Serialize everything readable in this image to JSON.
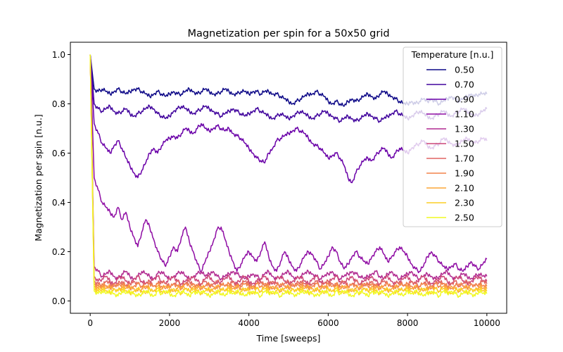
{
  "chart_data": {
    "type": "line",
    "title": "Magnetization per spin for a 50x50 grid",
    "xlabel": "Time [sweeps]",
    "ylabel": "Magnetization per spin [n.u.]",
    "xlim": [
      -500,
      10500
    ],
    "ylim": [
      -0.05,
      1.05
    ],
    "xticks": [
      0,
      2000,
      4000,
      6000,
      8000,
      10000
    ],
    "yticks": [
      0.0,
      0.2,
      0.4,
      0.6,
      0.8,
      1.0
    ],
    "ytick_labels": [
      "0.0",
      "0.2",
      "0.4",
      "0.6",
      "0.8",
      "1.0"
    ],
    "x_step": 100,
    "legend": {
      "title": "Temperature [n.u.]",
      "placement": "top-right",
      "alpha": 0.8
    },
    "grid": false,
    "series": [
      {
        "name": "0.50",
        "color": "#0d0887",
        "values": [
          1.0,
          0.86,
          0.85,
          0.86,
          0.85,
          0.84,
          0.85,
          0.86,
          0.85,
          0.84,
          0.85,
          0.86,
          0.86,
          0.85,
          0.84,
          0.83,
          0.84,
          0.85,
          0.84,
          0.83,
          0.84,
          0.85,
          0.84,
          0.84,
          0.85,
          0.86,
          0.85,
          0.84,
          0.85,
          0.86,
          0.85,
          0.84,
          0.84,
          0.85,
          0.86,
          0.85,
          0.84,
          0.84,
          0.85,
          0.85,
          0.84,
          0.85,
          0.85,
          0.84,
          0.85,
          0.85,
          0.84,
          0.84,
          0.83,
          0.82,
          0.81,
          0.8,
          0.81,
          0.82,
          0.83,
          0.84,
          0.84,
          0.85,
          0.84,
          0.83,
          0.81,
          0.8,
          0.81,
          0.8,
          0.79,
          0.81,
          0.82,
          0.81,
          0.82,
          0.83,
          0.84,
          0.83,
          0.82,
          0.84,
          0.85,
          0.84,
          0.83,
          0.82,
          0.81,
          0.8,
          0.8,
          0.81,
          0.8,
          0.81,
          0.82,
          0.81,
          0.82,
          0.81,
          0.8,
          0.81,
          0.82,
          0.83,
          0.82,
          0.81,
          0.82,
          0.83,
          0.84,
          0.83,
          0.84,
          0.84,
          0.84
        ]
      },
      {
        "name": "0.70",
        "color": "#41049d",
        "values": [
          1.0,
          0.8,
          0.78,
          0.77,
          0.78,
          0.79,
          0.77,
          0.76,
          0.77,
          0.78,
          0.76,
          0.75,
          0.76,
          0.77,
          0.78,
          0.79,
          0.78,
          0.76,
          0.75,
          0.74,
          0.75,
          0.77,
          0.78,
          0.79,
          0.78,
          0.77,
          0.76,
          0.77,
          0.78,
          0.79,
          0.78,
          0.77,
          0.76,
          0.75,
          0.76,
          0.77,
          0.78,
          0.77,
          0.76,
          0.75,
          0.76,
          0.77,
          0.78,
          0.77,
          0.76,
          0.75,
          0.74,
          0.75,
          0.76,
          0.75,
          0.74,
          0.75,
          0.76,
          0.77,
          0.76,
          0.75,
          0.74,
          0.75,
          0.76,
          0.77,
          0.76,
          0.75,
          0.74,
          0.73,
          0.74,
          0.75,
          0.74,
          0.73,
          0.74,
          0.75,
          0.76,
          0.75,
          0.74,
          0.73,
          0.74,
          0.75,
          0.76,
          0.77,
          0.76,
          0.75,
          0.74,
          0.75,
          0.76,
          0.77,
          0.76,
          0.75,
          0.74,
          0.75,
          0.76,
          0.77,
          0.76,
          0.75,
          0.76,
          0.77,
          0.78,
          0.77,
          0.76,
          0.75,
          0.76,
          0.77,
          0.78
        ]
      },
      {
        "name": "0.90",
        "color": "#6a00a8",
        "values": [
          1.0,
          0.72,
          0.68,
          0.64,
          0.62,
          0.6,
          0.63,
          0.65,
          0.62,
          0.58,
          0.55,
          0.52,
          0.5,
          0.53,
          0.56,
          0.6,
          0.62,
          0.6,
          0.63,
          0.65,
          0.66,
          0.67,
          0.66,
          0.68,
          0.7,
          0.69,
          0.68,
          0.7,
          0.72,
          0.7,
          0.69,
          0.7,
          0.71,
          0.7,
          0.69,
          0.7,
          0.68,
          0.67,
          0.66,
          0.64,
          0.62,
          0.6,
          0.58,
          0.57,
          0.56,
          0.6,
          0.62,
          0.65,
          0.66,
          0.67,
          0.68,
          0.69,
          0.7,
          0.69,
          0.68,
          0.66,
          0.64,
          0.63,
          0.62,
          0.6,
          0.58,
          0.59,
          0.6,
          0.58,
          0.55,
          0.5,
          0.48,
          0.52,
          0.55,
          0.57,
          0.58,
          0.57,
          0.59,
          0.61,
          0.62,
          0.6,
          0.58,
          0.6,
          0.62,
          0.61,
          0.6,
          0.62,
          0.63,
          0.64,
          0.65,
          0.63,
          0.62,
          0.63,
          0.64,
          0.66,
          0.65,
          0.64,
          0.63,
          0.64,
          0.65,
          0.66,
          0.65,
          0.64,
          0.65,
          0.66,
          0.65
        ]
      },
      {
        "name": "1.10",
        "color": "#8f0da4",
        "values": [
          1.0,
          0.5,
          0.45,
          0.4,
          0.38,
          0.36,
          0.34,
          0.38,
          0.33,
          0.36,
          0.3,
          0.26,
          0.22,
          0.28,
          0.33,
          0.3,
          0.25,
          0.2,
          0.17,
          0.14,
          0.18,
          0.22,
          0.2,
          0.26,
          0.3,
          0.24,
          0.2,
          0.15,
          0.12,
          0.16,
          0.2,
          0.24,
          0.29,
          0.3,
          0.25,
          0.2,
          0.16,
          0.12,
          0.15,
          0.18,
          0.2,
          0.18,
          0.16,
          0.2,
          0.24,
          0.18,
          0.14,
          0.12,
          0.16,
          0.2,
          0.17,
          0.14,
          0.12,
          0.15,
          0.18,
          0.2,
          0.19,
          0.16,
          0.13,
          0.15,
          0.18,
          0.22,
          0.2,
          0.16,
          0.13,
          0.15,
          0.18,
          0.2,
          0.18,
          0.16,
          0.15,
          0.18,
          0.2,
          0.22,
          0.19,
          0.16,
          0.18,
          0.2,
          0.22,
          0.2,
          0.18,
          0.15,
          0.13,
          0.12,
          0.14,
          0.18,
          0.2,
          0.18,
          0.16,
          0.14,
          0.13,
          0.14,
          0.15,
          0.13,
          0.12,
          0.14,
          0.16,
          0.14,
          0.13,
          0.15,
          0.17
        ]
      },
      {
        "name": "1.30",
        "color": "#b12a90",
        "values": [
          1.0,
          0.14,
          0.12,
          0.1,
          0.11,
          0.12,
          0.1,
          0.09,
          0.11,
          0.12,
          0.1,
          0.09,
          0.1,
          0.12,
          0.11,
          0.1,
          0.09,
          0.11,
          0.12,
          0.1,
          0.09,
          0.1,
          0.11,
          0.12,
          0.1,
          0.09,
          0.1,
          0.11,
          0.12,
          0.1,
          0.11,
          0.12,
          0.1,
          0.09,
          0.1,
          0.11,
          0.12,
          0.11,
          0.1,
          0.09,
          0.1,
          0.11,
          0.1,
          0.09,
          0.11,
          0.12,
          0.1,
          0.09,
          0.1,
          0.11,
          0.12,
          0.1,
          0.09,
          0.1,
          0.11,
          0.12,
          0.11,
          0.1,
          0.09,
          0.1,
          0.11,
          0.12,
          0.1,
          0.09,
          0.1,
          0.11,
          0.12,
          0.11,
          0.1,
          0.09,
          0.1,
          0.11,
          0.12,
          0.1,
          0.09,
          0.11,
          0.12,
          0.1,
          0.09,
          0.1,
          0.11,
          0.12,
          0.1,
          0.09,
          0.1,
          0.11,
          0.1,
          0.09,
          0.1,
          0.11,
          0.12,
          0.1,
          0.09,
          0.1,
          0.11,
          0.1,
          0.09,
          0.1,
          0.11,
          0.1,
          0.1
        ]
      },
      {
        "name": "1.50",
        "color": "#cc4778",
        "values": [
          1.0,
          0.1,
          0.08,
          0.09,
          0.1,
          0.08,
          0.07,
          0.09,
          0.1,
          0.08,
          0.07,
          0.09,
          0.1,
          0.08,
          0.07,
          0.08,
          0.09,
          0.1,
          0.08,
          0.07,
          0.09,
          0.1,
          0.08,
          0.07,
          0.08,
          0.09,
          0.1,
          0.08,
          0.07,
          0.09,
          0.1,
          0.08,
          0.07,
          0.08,
          0.09,
          0.1,
          0.08,
          0.07,
          0.09,
          0.1,
          0.08,
          0.07,
          0.08,
          0.09,
          0.1,
          0.08,
          0.07,
          0.09,
          0.1,
          0.08,
          0.07,
          0.08,
          0.09,
          0.1,
          0.08,
          0.07,
          0.09,
          0.1,
          0.08,
          0.07,
          0.08,
          0.09,
          0.1,
          0.08,
          0.07,
          0.09,
          0.1,
          0.08,
          0.07,
          0.08,
          0.09,
          0.1,
          0.08,
          0.07,
          0.09,
          0.1,
          0.08,
          0.07,
          0.08,
          0.09,
          0.1,
          0.08,
          0.07,
          0.09,
          0.1,
          0.08,
          0.07,
          0.08,
          0.09,
          0.1,
          0.08,
          0.07,
          0.09,
          0.1,
          0.08,
          0.07,
          0.08,
          0.09,
          0.1,
          0.08,
          0.08
        ]
      },
      {
        "name": "1.70",
        "color": "#e16462",
        "values": [
          1.0,
          0.08,
          0.07,
          0.06,
          0.08,
          0.07,
          0.06,
          0.07,
          0.08,
          0.06,
          0.07,
          0.08,
          0.07,
          0.06,
          0.07,
          0.08,
          0.06,
          0.07,
          0.08,
          0.07,
          0.06,
          0.07,
          0.08,
          0.06,
          0.07,
          0.08,
          0.07,
          0.06,
          0.07,
          0.08,
          0.06,
          0.07,
          0.08,
          0.07,
          0.06,
          0.07,
          0.08,
          0.06,
          0.07,
          0.08,
          0.07,
          0.06,
          0.07,
          0.08,
          0.06,
          0.07,
          0.08,
          0.07,
          0.06,
          0.07,
          0.08,
          0.06,
          0.07,
          0.08,
          0.07,
          0.06,
          0.07,
          0.08,
          0.06,
          0.07,
          0.08,
          0.07,
          0.06,
          0.07,
          0.08,
          0.06,
          0.07,
          0.08,
          0.07,
          0.06,
          0.07,
          0.08,
          0.06,
          0.07,
          0.08,
          0.07,
          0.06,
          0.07,
          0.08,
          0.06,
          0.07,
          0.08,
          0.07,
          0.06,
          0.07,
          0.08,
          0.06,
          0.07,
          0.08,
          0.07,
          0.06,
          0.07,
          0.08,
          0.06,
          0.07,
          0.08,
          0.07,
          0.06,
          0.07,
          0.08,
          0.07
        ]
      },
      {
        "name": "1.90",
        "color": "#f2844b",
        "values": [
          1.0,
          0.07,
          0.06,
          0.07,
          0.06,
          0.05,
          0.07,
          0.06,
          0.07,
          0.06,
          0.05,
          0.06,
          0.07,
          0.06,
          0.05,
          0.07,
          0.06,
          0.07,
          0.06,
          0.05,
          0.06,
          0.07,
          0.06,
          0.05,
          0.07,
          0.06,
          0.07,
          0.06,
          0.05,
          0.06,
          0.07,
          0.06,
          0.05,
          0.07,
          0.06,
          0.07,
          0.06,
          0.05,
          0.06,
          0.07,
          0.06,
          0.05,
          0.07,
          0.06,
          0.07,
          0.06,
          0.05,
          0.06,
          0.07,
          0.06,
          0.05,
          0.07,
          0.06,
          0.07,
          0.06,
          0.05,
          0.06,
          0.07,
          0.06,
          0.05,
          0.07,
          0.06,
          0.07,
          0.06,
          0.05,
          0.06,
          0.07,
          0.06,
          0.05,
          0.07,
          0.06,
          0.07,
          0.06,
          0.05,
          0.06,
          0.07,
          0.06,
          0.05,
          0.07,
          0.06,
          0.07,
          0.06,
          0.05,
          0.06,
          0.07,
          0.06,
          0.05,
          0.07,
          0.06,
          0.07,
          0.06,
          0.05,
          0.06,
          0.07,
          0.06,
          0.05,
          0.07,
          0.06,
          0.07,
          0.06,
          0.06
        ]
      },
      {
        "name": "2.10",
        "color": "#fca636",
        "values": [
          1.0,
          0.06,
          0.05,
          0.06,
          0.05,
          0.06,
          0.05,
          0.04,
          0.06,
          0.05,
          0.06,
          0.05,
          0.04,
          0.05,
          0.06,
          0.05,
          0.04,
          0.06,
          0.05,
          0.06,
          0.05,
          0.04,
          0.05,
          0.06,
          0.05,
          0.04,
          0.06,
          0.05,
          0.06,
          0.05,
          0.04,
          0.05,
          0.06,
          0.05,
          0.04,
          0.06,
          0.05,
          0.06,
          0.05,
          0.04,
          0.05,
          0.06,
          0.05,
          0.04,
          0.06,
          0.05,
          0.06,
          0.05,
          0.04,
          0.05,
          0.06,
          0.05,
          0.04,
          0.06,
          0.05,
          0.06,
          0.05,
          0.04,
          0.05,
          0.06,
          0.05,
          0.04,
          0.06,
          0.05,
          0.06,
          0.05,
          0.04,
          0.05,
          0.06,
          0.05,
          0.04,
          0.06,
          0.05,
          0.06,
          0.05,
          0.04,
          0.05,
          0.06,
          0.05,
          0.04,
          0.06,
          0.05,
          0.06,
          0.05,
          0.04,
          0.05,
          0.06,
          0.05,
          0.04,
          0.06,
          0.05,
          0.06,
          0.05,
          0.04,
          0.05,
          0.06,
          0.05,
          0.04,
          0.06,
          0.05,
          0.05
        ]
      },
      {
        "name": "2.30",
        "color": "#fcce25",
        "values": [
          1.0,
          0.05,
          0.04,
          0.05,
          0.04,
          0.03,
          0.05,
          0.04,
          0.05,
          0.04,
          0.03,
          0.04,
          0.05,
          0.04,
          0.03,
          0.05,
          0.04,
          0.05,
          0.04,
          0.03,
          0.04,
          0.05,
          0.04,
          0.03,
          0.05,
          0.04,
          0.05,
          0.04,
          0.03,
          0.04,
          0.05,
          0.04,
          0.03,
          0.05,
          0.04,
          0.05,
          0.04,
          0.03,
          0.04,
          0.05,
          0.04,
          0.03,
          0.05,
          0.04,
          0.05,
          0.04,
          0.03,
          0.04,
          0.05,
          0.04,
          0.03,
          0.05,
          0.04,
          0.05,
          0.04,
          0.03,
          0.04,
          0.05,
          0.04,
          0.03,
          0.05,
          0.04,
          0.05,
          0.04,
          0.03,
          0.04,
          0.05,
          0.04,
          0.03,
          0.05,
          0.04,
          0.05,
          0.04,
          0.03,
          0.04,
          0.05,
          0.04,
          0.03,
          0.05,
          0.04,
          0.05,
          0.04,
          0.03,
          0.04,
          0.05,
          0.04,
          0.03,
          0.05,
          0.04,
          0.05,
          0.04,
          0.03,
          0.04,
          0.05,
          0.04,
          0.03,
          0.05,
          0.04,
          0.05,
          0.04,
          0.04
        ]
      },
      {
        "name": "2.50",
        "color": "#f0f921",
        "values": [
          1.0,
          0.04,
          0.03,
          0.04,
          0.03,
          0.04,
          0.03,
          0.02,
          0.04,
          0.03,
          0.04,
          0.03,
          0.02,
          0.03,
          0.04,
          0.03,
          0.02,
          0.04,
          0.03,
          0.04,
          0.03,
          0.02,
          0.03,
          0.04,
          0.03,
          0.02,
          0.04,
          0.03,
          0.04,
          0.03,
          0.02,
          0.03,
          0.04,
          0.03,
          0.02,
          0.04,
          0.03,
          0.04,
          0.03,
          0.02,
          0.03,
          0.04,
          0.03,
          0.02,
          0.04,
          0.03,
          0.04,
          0.03,
          0.02,
          0.03,
          0.04,
          0.03,
          0.02,
          0.04,
          0.03,
          0.04,
          0.03,
          0.02,
          0.03,
          0.04,
          0.03,
          0.02,
          0.04,
          0.03,
          0.04,
          0.03,
          0.02,
          0.03,
          0.04,
          0.03,
          0.02,
          0.04,
          0.03,
          0.04,
          0.03,
          0.02,
          0.03,
          0.04,
          0.03,
          0.02,
          0.04,
          0.03,
          0.04,
          0.03,
          0.02,
          0.03,
          0.04,
          0.03,
          0.02,
          0.04,
          0.03,
          0.04,
          0.03,
          0.02,
          0.03,
          0.04,
          0.03,
          0.02,
          0.04,
          0.03,
          0.03
        ]
      }
    ]
  }
}
